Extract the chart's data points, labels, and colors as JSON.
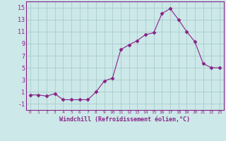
{
  "x": [
    0,
    1,
    2,
    3,
    4,
    5,
    6,
    7,
    8,
    9,
    10,
    11,
    12,
    13,
    14,
    15,
    16,
    17,
    18,
    19,
    20,
    21,
    22,
    23
  ],
  "y": [
    0.5,
    0.5,
    0.3,
    0.7,
    -0.3,
    -0.3,
    -0.3,
    -0.3,
    1.0,
    2.8,
    3.3,
    8.0,
    8.8,
    9.5,
    10.5,
    10.8,
    14.0,
    14.8,
    13.0,
    11.0,
    9.3,
    5.7,
    5.0,
    5.0
  ],
  "line_color": "#882288",
  "marker": "D",
  "marker_size": 2.5,
  "bg_color": "#cce8e8",
  "grid_color": "#aacccc",
  "xlabel": "Windchill (Refroidissement éolien,°C)",
  "xlim": [
    -0.5,
    23.5
  ],
  "ylim": [
    -2,
    16
  ],
  "yticks": [
    -1,
    1,
    3,
    5,
    7,
    9,
    11,
    13,
    15
  ],
  "xticks": [
    0,
    1,
    2,
    3,
    4,
    5,
    6,
    7,
    8,
    9,
    10,
    11,
    12,
    13,
    14,
    15,
    16,
    17,
    18,
    19,
    20,
    21,
    22,
    23
  ],
  "tick_color": "#882288",
  "spine_color": "#882288"
}
